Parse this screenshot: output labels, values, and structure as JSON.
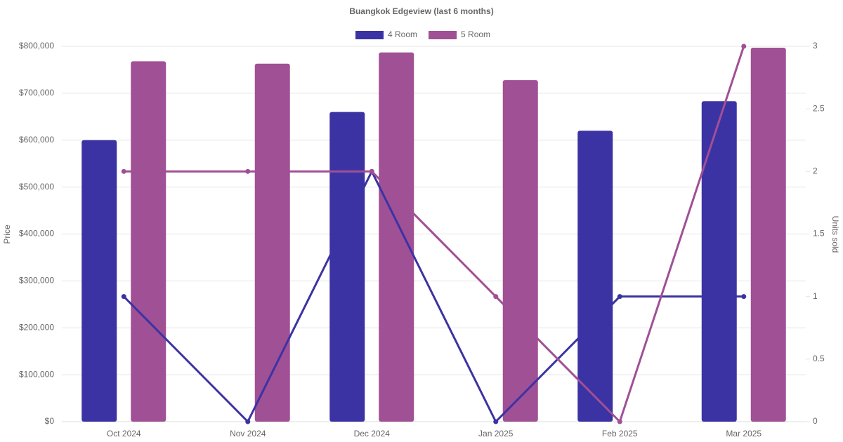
{
  "chart_data": {
    "type": "bar-line",
    "title": "Buangkok Edgeview (last 6 months)",
    "y_label": "Price",
    "y2_label": "Units sold",
    "categories": [
      "Oct 2024",
      "Nov 2024",
      "Dec 2024",
      "Jan 2025",
      "Feb 2025",
      "Mar 2025"
    ],
    "series": [
      {
        "name": "4 Room",
        "color": "#3b33a3",
        "values": [
          600000,
          null,
          660000,
          null,
          620000,
          683000
        ],
        "units_sold": [
          1,
          0,
          2,
          0,
          1,
          1
        ]
      },
      {
        "name": "5 Room",
        "color": "#a05095",
        "values": [
          768000,
          763000,
          787000,
          728000,
          null,
          797000
        ],
        "units_sold": [
          2,
          2,
          2,
          1,
          0,
          3
        ]
      }
    ],
    "ylim": [
      0,
      800000
    ],
    "yticks": [
      {
        "value": 0,
        "label": "$0"
      },
      {
        "value": 100000,
        "label": "$100,000"
      },
      {
        "value": 200000,
        "label": "$200,000"
      },
      {
        "value": 300000,
        "label": "$300,000"
      },
      {
        "value": 400000,
        "label": "$400,000"
      },
      {
        "value": 500000,
        "label": "$500,000"
      },
      {
        "value": 600000,
        "label": "$600,000"
      },
      {
        "value": 700000,
        "label": "$700,000"
      },
      {
        "value": 800000,
        "label": "$800,000"
      }
    ],
    "y2lim": [
      0,
      3
    ],
    "y2ticks": [
      0,
      0.5,
      1,
      1.5,
      2,
      2.5,
      3
    ],
    "grid": true
  }
}
